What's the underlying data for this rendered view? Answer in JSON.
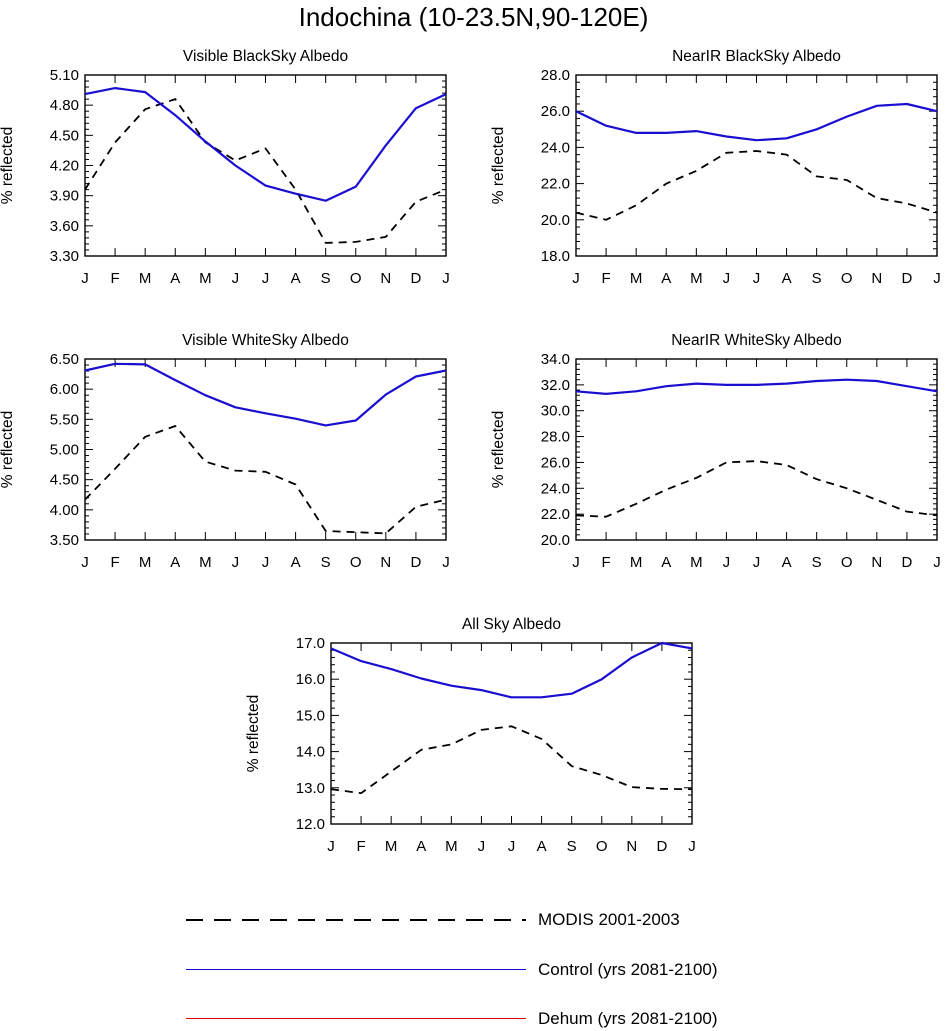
{
  "title": "Indochina (10-23.5N,90-120E)",
  "chart_data": [
    {
      "type": "line",
      "title": "Visible BlackSky Albedo",
      "ylabel": "% reflected",
      "categories": [
        "J",
        "F",
        "M",
        "A",
        "M",
        "J",
        "J",
        "A",
        "S",
        "O",
        "N",
        "D",
        "J"
      ],
      "ylim": [
        3.3,
        5.1
      ],
      "yticks": [
        "3.30",
        "3.60",
        "3.90",
        "4.20",
        "4.50",
        "4.80",
        "5.10"
      ],
      "series": [
        {
          "name": "MODIS 2001-2003",
          "values": [
            3.96,
            4.43,
            4.76,
            4.86,
            4.43,
            4.25,
            4.37,
            3.96,
            3.43,
            3.44,
            3.49,
            3.84,
            3.96
          ]
        },
        {
          "name": "Control (yrs 2081-2100)",
          "values": [
            4.91,
            4.97,
            4.93,
            4.7,
            4.44,
            4.2,
            4.0,
            3.92,
            3.85,
            3.99,
            4.4,
            4.77,
            4.91
          ]
        }
      ]
    },
    {
      "type": "line",
      "title": "NearIR BlackSky Albedo",
      "ylabel": "% reflected",
      "categories": [
        "J",
        "F",
        "M",
        "A",
        "M",
        "J",
        "J",
        "A",
        "S",
        "O",
        "N",
        "D",
        "J"
      ],
      "ylim": [
        18.0,
        28.0
      ],
      "yticks": [
        "18.0",
        "20.0",
        "22.0",
        "24.0",
        "26.0",
        "28.0"
      ],
      "series": [
        {
          "name": "MODIS 2001-2003",
          "values": [
            20.4,
            20.0,
            20.8,
            22.0,
            22.7,
            23.7,
            23.8,
            23.6,
            22.4,
            22.2,
            21.2,
            20.9,
            20.4
          ]
        },
        {
          "name": "Control (yrs 2081-2100)",
          "values": [
            26.0,
            25.2,
            24.8,
            24.8,
            24.9,
            24.6,
            24.4,
            24.5,
            25.0,
            25.7,
            26.3,
            26.4,
            26.0
          ]
        }
      ]
    },
    {
      "type": "line",
      "title": "Visible WhiteSky Albedo",
      "ylabel": "% reflected",
      "categories": [
        "J",
        "F",
        "M",
        "A",
        "M",
        "J",
        "J",
        "A",
        "S",
        "O",
        "N",
        "D",
        "J"
      ],
      "ylim": [
        3.5,
        6.5
      ],
      "yticks": [
        "3.50",
        "4.00",
        "4.50",
        "5.00",
        "5.50",
        "6.00",
        "6.50"
      ],
      "series": [
        {
          "name": "MODIS 2001-2003",
          "values": [
            4.17,
            4.68,
            5.21,
            5.39,
            4.8,
            4.65,
            4.63,
            4.42,
            3.65,
            3.63,
            3.61,
            4.05,
            4.17
          ]
        },
        {
          "name": "Control (yrs 2081-2100)",
          "values": [
            6.31,
            6.42,
            6.41,
            6.15,
            5.9,
            5.7,
            5.6,
            5.51,
            5.4,
            5.48,
            5.91,
            6.21,
            6.31
          ]
        }
      ]
    },
    {
      "type": "line",
      "title": "NearIR WhiteSky Albedo",
      "ylabel": "% reflected",
      "categories": [
        "J",
        "F",
        "M",
        "A",
        "M",
        "J",
        "J",
        "A",
        "S",
        "O",
        "N",
        "D",
        "J"
      ],
      "ylim": [
        20.0,
        34.0
      ],
      "yticks": [
        "20.0",
        "22.0",
        "24.0",
        "26.0",
        "28.0",
        "30.0",
        "32.0",
        "34.0"
      ],
      "series": [
        {
          "name": "MODIS 2001-2003",
          "values": [
            21.9,
            21.8,
            22.8,
            23.9,
            24.8,
            26.0,
            26.1,
            25.8,
            24.7,
            24.0,
            23.1,
            22.2,
            21.9
          ]
        },
        {
          "name": "Control (yrs 2081-2100)",
          "values": [
            31.5,
            31.3,
            31.5,
            31.9,
            32.1,
            32.0,
            32.0,
            32.1,
            32.3,
            32.4,
            32.3,
            31.9,
            31.5
          ]
        }
      ]
    },
    {
      "type": "line",
      "title": "All Sky Albedo",
      "ylabel": "% reflected",
      "categories": [
        "J",
        "F",
        "M",
        "A",
        "M",
        "J",
        "J",
        "A",
        "S",
        "O",
        "N",
        "D",
        "J"
      ],
      "ylim": [
        12.0,
        17.0
      ],
      "yticks": [
        "12.0",
        "13.0",
        "14.0",
        "15.0",
        "16.0",
        "17.0"
      ],
      "series": [
        {
          "name": "MODIS 2001-2003",
          "values": [
            12.96,
            12.85,
            13.45,
            14.05,
            14.2,
            14.6,
            14.7,
            14.35,
            13.6,
            13.35,
            13.02,
            12.97,
            12.96
          ]
        },
        {
          "name": "Control (yrs 2081-2100)",
          "values": [
            16.85,
            16.5,
            16.28,
            16.02,
            15.82,
            15.7,
            15.5,
            15.5,
            15.6,
            16.0,
            16.6,
            17.0,
            16.85
          ]
        }
      ]
    }
  ],
  "legend": [
    {
      "label": "MODIS 2001-2003",
      "color": "#000000",
      "style": "dashed"
    },
    {
      "label": "Control (yrs 2081-2100)",
      "color": "#1a0fd0",
      "style": "solid"
    },
    {
      "label": "Dehum (yrs 2081-2100)",
      "color": "#e00000",
      "style": "solid"
    }
  ]
}
